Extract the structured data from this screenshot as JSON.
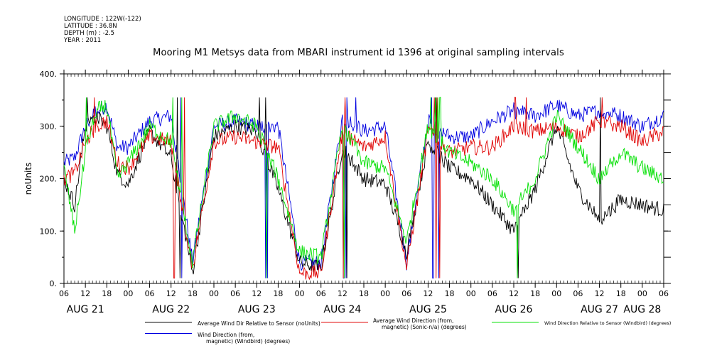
{
  "meta": {
    "longitude": "LONGITUDE : 122W(-122)",
    "latitude": "LATITUDE : 36.8N",
    "depth": "DEPTH (m) : -2.5",
    "year": "YEAR : 2011"
  },
  "title": "Mooring M1 Metsys data from MBARI instrument id 1396 at original sampling intervals",
  "legend": [
    {
      "line1": "Average Wind Dir Relative to Sensor (noUnits)",
      "line2": "",
      "color": "#000000"
    },
    {
      "line1": "Average Wind Direction (from,",
      "line2": "magnetic) (Sonic-n/a) (degrees)",
      "color": "#e00000"
    },
    {
      "line1": "Wind Direction Relative to Sensor (Windbird) (degrees)",
      "line2": "",
      "color": "#00e000"
    },
    {
      "line1": "Wind Direction (from,",
      "line2": "magnetic) (Windbird) (degrees)",
      "color": "#0000e0"
    }
  ],
  "chart_data": {
    "type": "line",
    "ylabel": "noUnits",
    "ylim": [
      0,
      400
    ],
    "yticks": [
      "0.",
      "100.",
      "200.",
      "300.",
      "400."
    ],
    "xlim_hours": [
      0,
      168
    ],
    "x_hour_labels": [
      "06",
      "12",
      "18",
      "00",
      "06",
      "12",
      "18",
      "00",
      "06",
      "12",
      "18",
      "00",
      "06",
      "12",
      "18",
      "00",
      "06",
      "12",
      "18",
      "00",
      "06",
      "12",
      "18",
      "00",
      "06",
      "12",
      "18",
      "00",
      "06"
    ],
    "x_day_labels": [
      "AUG 21",
      "AUG 22",
      "AUG 23",
      "AUG 24",
      "AUG 25",
      "AUG 26",
      "AUG 27",
      "AUG 28"
    ],
    "grid": false,
    "series": [
      {
        "name": "Average Wind Dir Relative to Sensor (noUnits)",
        "color": "#000000",
        "x": [
          0,
          3,
          6,
          9,
          12,
          15,
          18,
          24,
          30,
          36,
          42,
          48,
          54,
          60,
          66,
          72,
          78,
          84,
          90,
          96,
          102,
          108,
          114,
          120,
          126,
          132,
          138,
          144,
          150,
          156,
          162,
          168
        ],
        "y": [
          200,
          150,
          300,
          320,
          300,
          210,
          190,
          290,
          240,
          20,
          280,
          300,
          290,
          180,
          40,
          30,
          260,
          200,
          190,
          60,
          270,
          220,
          200,
          150,
          100,
          180,
          300,
          180,
          120,
          160,
          150,
          140
        ]
      },
      {
        "name": "Average Wind Direction (from, magnetic) (Sonic-n/a) (degrees)",
        "color": "#e00000",
        "x": [
          0,
          3,
          6,
          9,
          12,
          15,
          18,
          24,
          30,
          36,
          42,
          48,
          54,
          60,
          66,
          72,
          78,
          84,
          90,
          96,
          102,
          108,
          114,
          120,
          126,
          132,
          138,
          144,
          150,
          156,
          162,
          168
        ],
        "y": [
          200,
          210,
          270,
          300,
          310,
          230,
          220,
          280,
          270,
          30,
          270,
          280,
          270,
          260,
          20,
          20,
          290,
          260,
          280,
          30,
          290,
          250,
          260,
          260,
          300,
          290,
          300,
          280,
          310,
          300,
          270,
          290
        ]
      },
      {
        "name": "Wind Direction Relative to Sensor (Windbird) (degrees)",
        "color": "#00e000",
        "x": [
          0,
          3,
          6,
          9,
          12,
          15,
          18,
          24,
          30,
          36,
          42,
          48,
          54,
          60,
          66,
          72,
          78,
          84,
          90,
          96,
          102,
          108,
          114,
          120,
          126,
          132,
          138,
          144,
          150,
          156,
          162,
          168
        ],
        "y": [
          220,
          100,
          250,
          330,
          340,
          200,
          230,
          300,
          270,
          40,
          300,
          320,
          300,
          200,
          60,
          50,
          300,
          230,
          220,
          80,
          300,
          250,
          230,
          200,
          140,
          200,
          320,
          260,
          200,
          250,
          220,
          200
        ]
      },
      {
        "name": "Wind Direction (from, magnetic) (Windbird) (degrees)",
        "color": "#0000e0",
        "x": [
          0,
          3,
          6,
          9,
          12,
          15,
          18,
          24,
          30,
          36,
          42,
          48,
          54,
          60,
          66,
          72,
          78,
          84,
          90,
          96,
          102,
          108,
          114,
          120,
          126,
          132,
          138,
          144,
          150,
          156,
          162,
          168
        ],
        "y": [
          230,
          240,
          300,
          330,
          340,
          260,
          260,
          310,
          320,
          40,
          300,
          310,
          300,
          300,
          40,
          40,
          320,
          290,
          300,
          40,
          310,
          280,
          280,
          310,
          330,
          320,
          340,
          320,
          330,
          320,
          300,
          320
        ]
      }
    ]
  }
}
